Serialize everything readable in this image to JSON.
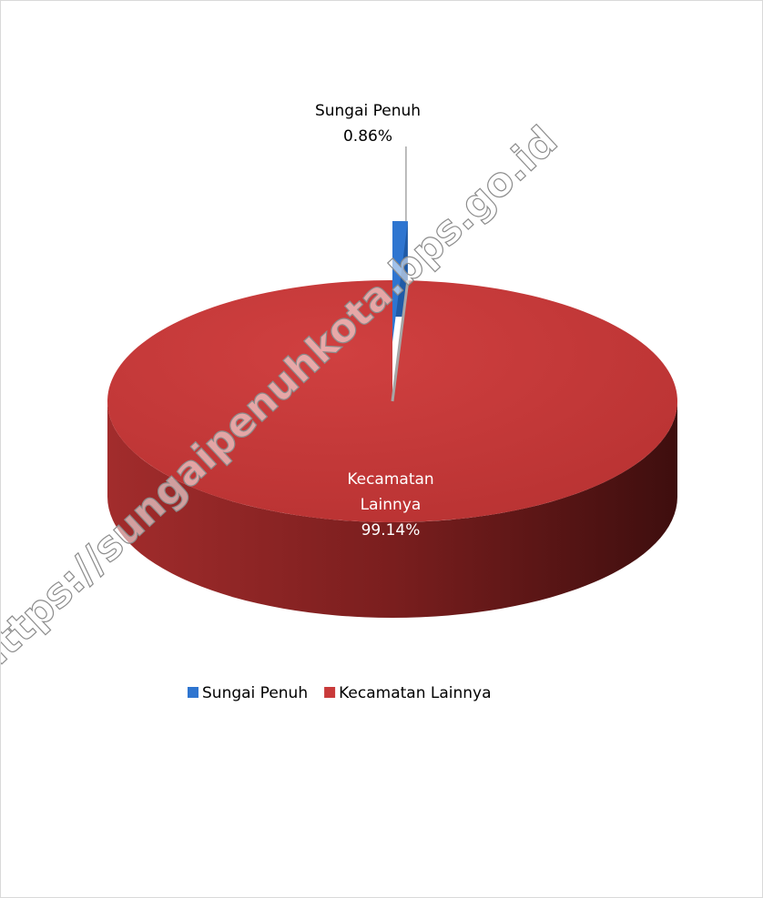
{
  "chart_data": {
    "type": "pie",
    "categories": [
      "Sungai Penuh",
      "Kecamatan Lainnya"
    ],
    "values": [
      0.86,
      99.14
    ],
    "value_labels": [
      "0.86%",
      "99.14%"
    ],
    "colors": [
      "#2e75d0",
      "#c93a3a"
    ],
    "legend": "bottom",
    "watermark": "https://sungaipenuhkota.bps.go.id"
  }
}
